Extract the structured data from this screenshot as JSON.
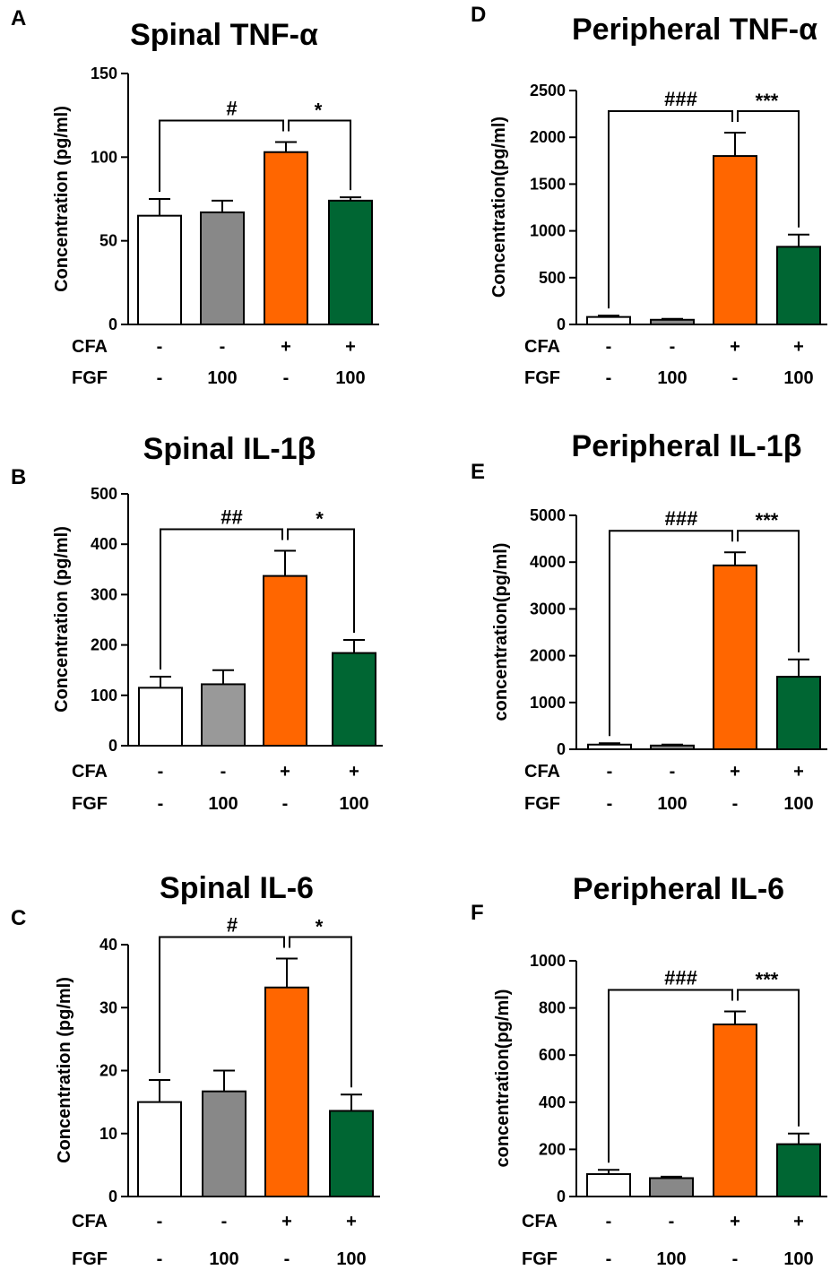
{
  "chart_data": [
    {
      "type": "bar",
      "panel_label": "A",
      "title": "Spinal TNF-α",
      "ylabel": "Concentration (pg/ml)",
      "ylim": [
        0,
        150
      ],
      "yticks": [
        "0",
        "50",
        "100",
        "150"
      ],
      "row_labels": [
        "CFA",
        "FGF"
      ],
      "cfa": [
        "-",
        "-",
        "+",
        "+"
      ],
      "fgf": [
        "-",
        "100",
        "-",
        "100"
      ],
      "values": [
        65,
        67,
        103,
        74
      ],
      "errors": [
        10,
        7,
        6,
        2
      ],
      "colors": [
        "#ffffff",
        "#888888",
        "#ff6600",
        "#006633"
      ],
      "sig_left": "#",
      "sig_right": "*"
    },
    {
      "type": "bar",
      "panel_label": "B",
      "title": "Spinal IL-1β",
      "ylabel": "Concentration (pg/ml)",
      "ylim": [
        0,
        500
      ],
      "yticks": [
        "0",
        "100",
        "200",
        "300",
        "400",
        "500"
      ],
      "row_labels": [
        "CFA",
        "FGF"
      ],
      "cfa": [
        "-",
        "-",
        "+",
        "+"
      ],
      "fgf": [
        "-",
        "100",
        "-",
        "100"
      ],
      "values": [
        115,
        122,
        337,
        184
      ],
      "errors": [
        22,
        28,
        50,
        26
      ],
      "colors": [
        "#ffffff",
        "#999999",
        "#ff6600",
        "#006633"
      ],
      "sig_left": "##",
      "sig_right": "*"
    },
    {
      "type": "bar",
      "panel_label": "C",
      "title": "Spinal IL-6",
      "ylabel": "Concentration (pg/ml)",
      "ylim": [
        0,
        40
      ],
      "yticks": [
        "0",
        "10",
        "20",
        "30",
        "40"
      ],
      "row_labels": [
        "CFA",
        "FGF"
      ],
      "cfa": [
        "-",
        "-",
        "+",
        "+"
      ],
      "fgf": [
        "-",
        "100",
        "-",
        "100"
      ],
      "values": [
        15,
        16.7,
        33.2,
        13.6
      ],
      "errors": [
        3.5,
        3.3,
        4.6,
        2.6
      ],
      "colors": [
        "#ffffff",
        "#888888",
        "#ff6600",
        "#006633"
      ],
      "sig_left": "#",
      "sig_right": "*"
    },
    {
      "type": "bar",
      "panel_label": "D",
      "title": "Peripheral TNF-α",
      "ylabel": "Concentration(pg/ml)",
      "ylim": [
        0,
        2500
      ],
      "yticks": [
        "0",
        "500",
        "1000",
        "1500",
        "2000",
        "2500"
      ],
      "row_labels": [
        "CFA",
        "FGF"
      ],
      "cfa": [
        "-",
        "-",
        "+",
        "+"
      ],
      "fgf": [
        "-",
        "100",
        "-",
        "100"
      ],
      "values": [
        80,
        50,
        1800,
        830
      ],
      "errors": [
        15,
        10,
        250,
        130
      ],
      "colors": [
        "#ffffff",
        "#888888",
        "#ff6600",
        "#006633"
      ],
      "sig_left": "###",
      "sig_right": "***"
    },
    {
      "type": "bar",
      "panel_label": "E",
      "title": "Peripheral IL-1β",
      "ylabel": "concentration(pg/ml)",
      "ylim": [
        0,
        5000
      ],
      "yticks": [
        "0",
        "1000",
        "2000",
        "3000",
        "4000",
        "5000"
      ],
      "row_labels": [
        "CFA",
        "FGF"
      ],
      "cfa": [
        "-",
        "-",
        "+",
        "+"
      ],
      "fgf": [
        "-",
        "100",
        "-",
        "100"
      ],
      "values": [
        100,
        80,
        3930,
        1550
      ],
      "errors": [
        30,
        20,
        280,
        370
      ],
      "colors": [
        "#ffffff",
        "#888888",
        "#ff6600",
        "#006633"
      ],
      "sig_left": "###",
      "sig_right": "***"
    },
    {
      "type": "bar",
      "panel_label": "F",
      "title": "Peripheral IL-6",
      "ylabel": "concentration(pg/ml)",
      "ylim": [
        0,
        1000
      ],
      "yticks": [
        "0",
        "200",
        "400",
        "600",
        "800",
        "1000"
      ],
      "row_labels": [
        "CFA",
        "FGF"
      ],
      "cfa": [
        "-",
        "-",
        "+",
        "+"
      ],
      "fgf": [
        "-",
        "100",
        "-",
        "100"
      ],
      "values": [
        95,
        78,
        730,
        222
      ],
      "errors": [
        18,
        6,
        55,
        45
      ],
      "colors": [
        "#ffffff",
        "#888888",
        "#ff6600",
        "#006633"
      ],
      "sig_left": "###",
      "sig_right": "***"
    }
  ]
}
